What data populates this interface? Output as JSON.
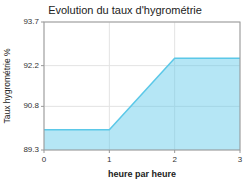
{
  "chart_data": {
    "type": "area",
    "title": "Evolution du taux d'hygrométrie",
    "xlabel": "heure par heure",
    "ylabel": "Taux hygrométrie %",
    "x": [
      0,
      1,
      2,
      3
    ],
    "values": [
      90.0,
      90.0,
      92.45,
      92.45
    ],
    "color": "#5bc8e8",
    "xlim": [
      0,
      3
    ],
    "ylim": [
      89.3,
      93.7
    ],
    "xticks": [
      0,
      1,
      2,
      3
    ],
    "yticks": [
      89.3,
      90.8,
      92.2,
      93.7
    ],
    "grid": true
  }
}
